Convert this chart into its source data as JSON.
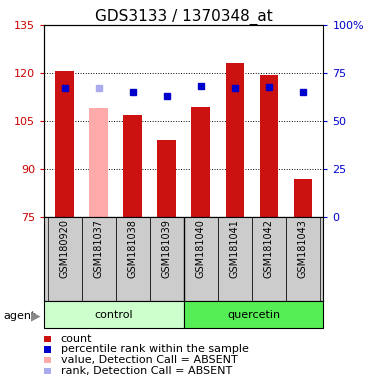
{
  "title": "GDS3133 / 1370348_at",
  "samples": [
    "GSM180920",
    "GSM181037",
    "GSM181038",
    "GSM181039",
    "GSM181040",
    "GSM181041",
    "GSM181042",
    "GSM181043"
  ],
  "count_values": [
    120.5,
    109.0,
    107.0,
    99.0,
    109.5,
    123.0,
    119.5,
    87.0
  ],
  "rank_values": [
    67.0,
    67.0,
    65.0,
    63.0,
    68.0,
    67.0,
    67.5,
    65.0
  ],
  "absent_flags": [
    false,
    true,
    false,
    false,
    false,
    false,
    false,
    false
  ],
  "groups": [
    "control",
    "control",
    "control",
    "control",
    "quercetin",
    "quercetin",
    "quercetin",
    "quercetin"
  ],
  "bar_color_present": "#cc1111",
  "bar_color_absent": "#ffaaaa",
  "rank_color_present": "#0000cc",
  "rank_color_absent": "#aaaaee",
  "ylim_left": [
    75,
    135
  ],
  "ylim_right": [
    0,
    100
  ],
  "yticks_left": [
    75,
    90,
    105,
    120,
    135
  ],
  "ytick_labels_left": [
    "75",
    "90",
    "105",
    "120",
    "135"
  ],
  "yticks_right": [
    0,
    25,
    50,
    75,
    100
  ],
  "ytick_labels_right": [
    "0",
    "25",
    "50",
    "75",
    "100%"
  ],
  "legend_items": [
    {
      "label": "count",
      "color": "#cc1111"
    },
    {
      "label": "percentile rank within the sample",
      "color": "#0000cc"
    },
    {
      "label": "value, Detection Call = ABSENT",
      "color": "#ffaaaa"
    },
    {
      "label": "rank, Detection Call = ABSENT",
      "color": "#aaaaee"
    }
  ],
  "agent_label": "agent",
  "color_left": "#cc0000",
  "color_right": "#0000cc",
  "title_fontsize": 11,
  "tick_fontsize": 8,
  "label_fontsize": 7,
  "legend_fontsize": 8,
  "bar_width": 0.55,
  "rank_marker_size": 5,
  "ctrl_color": "#ccffcc",
  "quer_color": "#55ee55",
  "sample_bg": "#cccccc"
}
